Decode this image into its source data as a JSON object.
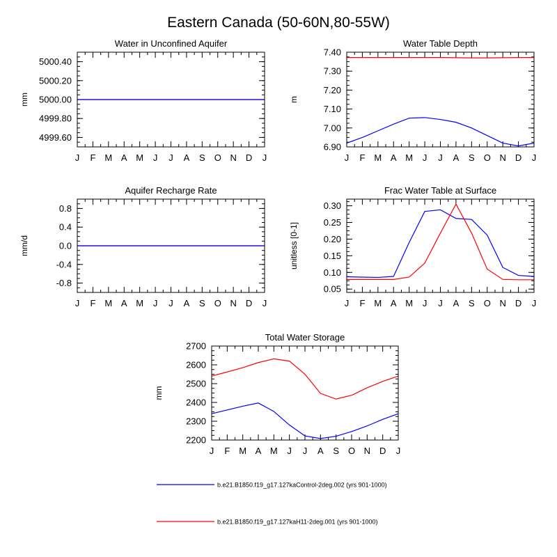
{
  "page": {
    "title": "Eastern Canada (50-60N,80-55W)"
  },
  "colors": {
    "control": "#0000ff",
    "h11": "#ff0000",
    "axis": "#000000"
  },
  "legend": [
    {
      "label": "b.e21.B1850.f19_g17.127kaControl-2deg.002 (yrs 901-1000)",
      "color": "#0000ff"
    },
    {
      "label": "b.e21.B1850.f19_g17.127kaH11-2deg.001 (yrs 901-1000)",
      "color": "#ff0000"
    }
  ],
  "chart_data": [
    {
      "type": "line",
      "title": "Water in Unconfined Aquifer",
      "ylabel": "mm",
      "x": [
        "J",
        "F",
        "M",
        "A",
        "M",
        "J",
        "J",
        "A",
        "S",
        "O",
        "N",
        "D",
        "J"
      ],
      "ylim": [
        4999.5,
        5000.5
      ],
      "yticks": [
        4999.6,
        4999.8,
        5000.0,
        5000.2,
        5000.4
      ],
      "ytick_labels": [
        "4999.60",
        "4999.80",
        "5000.00",
        "5000.20",
        "5000.40"
      ],
      "series": [
        {
          "color": "#ff0000",
          "values": [
            5000,
            5000,
            5000,
            5000,
            5000,
            5000,
            5000,
            5000,
            5000,
            5000,
            5000,
            5000,
            5000
          ]
        },
        {
          "color": "#0000ff",
          "values": [
            5000,
            5000,
            5000,
            5000,
            5000,
            5000,
            5000,
            5000,
            5000,
            5000,
            5000,
            5000,
            5000
          ]
        }
      ]
    },
    {
      "type": "line",
      "title": "Water Table Depth",
      "ylabel": "m",
      "x": [
        "J",
        "F",
        "M",
        "A",
        "M",
        "J",
        "J",
        "A",
        "S",
        "O",
        "N",
        "D",
        "J"
      ],
      "ylim": [
        6.9,
        7.4
      ],
      "yticks": [
        6.9,
        7.0,
        7.1,
        7.2,
        7.3,
        7.4
      ],
      "ytick_labels": [
        "6.90",
        "7.00",
        "7.10",
        "7.20",
        "7.30",
        "7.40"
      ],
      "series": [
        {
          "color": "#0000ff",
          "values": [
            6.92,
            6.95,
            6.985,
            7.02,
            7.052,
            7.055,
            7.045,
            7.03,
            7.0,
            6.96,
            6.92,
            6.905,
            6.92
          ]
        },
        {
          "color": "#ff0000",
          "values": [
            7.372,
            7.372,
            7.372,
            7.372,
            7.372,
            7.372,
            7.372,
            7.371,
            7.37,
            7.37,
            7.371,
            7.372,
            7.372
          ]
        }
      ]
    },
    {
      "type": "line",
      "title": "Aquifer Recharge Rate",
      "ylabel": "mm/d",
      "x": [
        "J",
        "F",
        "M",
        "A",
        "M",
        "J",
        "J",
        "A",
        "S",
        "O",
        "N",
        "D",
        "J"
      ],
      "ylim": [
        -1.0,
        1.0
      ],
      "yticks": [
        -0.8,
        -0.4,
        0.0,
        0.4,
        0.8
      ],
      "ytick_labels": [
        "-0.8",
        "-0.4",
        "0.0",
        "0.4",
        "0.8"
      ],
      "series": [
        {
          "color": "#ff0000",
          "values": [
            0,
            0,
            0,
            0,
            0,
            0,
            0,
            0,
            0,
            0,
            0,
            0,
            0
          ]
        },
        {
          "color": "#0000ff",
          "values": [
            0,
            0,
            0,
            0,
            0,
            0,
            0,
            0,
            0,
            0,
            0,
            0,
            0
          ]
        }
      ]
    },
    {
      "type": "line",
      "title": "Frac Water Table at Surface",
      "ylabel": "unitless [0-1]",
      "x": [
        "J",
        "F",
        "M",
        "A",
        "M",
        "J",
        "J",
        "A",
        "S",
        "O",
        "N",
        "D",
        "J"
      ],
      "ylim": [
        0.04,
        0.32
      ],
      "yticks": [
        0.05,
        0.1,
        0.15,
        0.2,
        0.25,
        0.3
      ],
      "ytick_labels": [
        "0.05",
        "0.10",
        "0.15",
        "0.20",
        "0.25",
        "0.30"
      ],
      "series": [
        {
          "color": "#0000ff",
          "values": [
            0.087,
            0.086,
            0.085,
            0.088,
            0.19,
            0.283,
            0.288,
            0.262,
            0.259,
            0.212,
            0.115,
            0.091,
            0.088
          ]
        },
        {
          "color": "#ff0000",
          "values": [
            0.079,
            0.079,
            0.079,
            0.079,
            0.086,
            0.128,
            0.218,
            0.305,
            0.218,
            0.11,
            0.079,
            0.078,
            0.078
          ]
        }
      ]
    },
    {
      "type": "line",
      "title": "Total Water Storage",
      "ylabel": "mm",
      "x": [
        "J",
        "F",
        "M",
        "A",
        "M",
        "J",
        "J",
        "A",
        "S",
        "O",
        "N",
        "D",
        "J"
      ],
      "ylim": [
        2200,
        2700
      ],
      "yticks": [
        2200,
        2300,
        2400,
        2500,
        2600,
        2700
      ],
      "ytick_labels": [
        "2200",
        "2300",
        "2400",
        "2500",
        "2600",
        "2700"
      ],
      "series": [
        {
          "color": "#0000ff",
          "values": [
            2340,
            2360,
            2380,
            2397,
            2352,
            2280,
            2222,
            2208,
            2220,
            2245,
            2275,
            2310,
            2340
          ]
        },
        {
          "color": "#ff0000",
          "values": [
            2540,
            2562,
            2585,
            2612,
            2632,
            2620,
            2550,
            2448,
            2418,
            2438,
            2478,
            2512,
            2540
          ]
        }
      ]
    }
  ]
}
